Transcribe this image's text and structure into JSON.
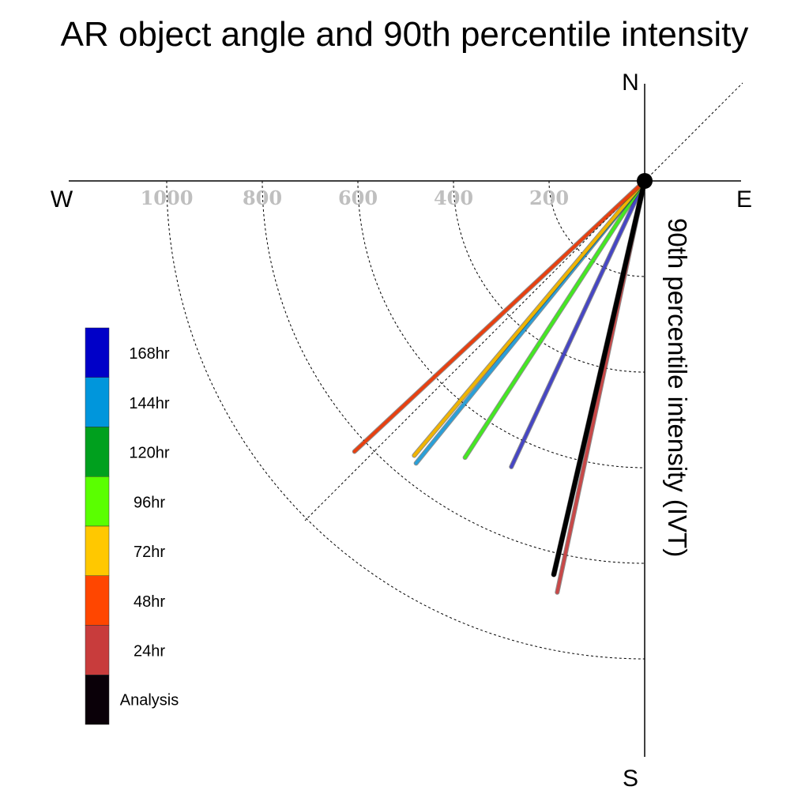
{
  "chart_data": {
    "type": "polar-vector",
    "title": "AR object angle and 90th percentile intensity",
    "ylabel": "90th percentile intensity (IVT)",
    "compass": {
      "north": "N",
      "south": "S",
      "east": "E",
      "west": "W"
    },
    "radial_ticks": [
      200,
      400,
      600,
      800,
      1000
    ],
    "radial_range": [
      0,
      1000
    ],
    "grid": true,
    "legend_position": "left",
    "series": [
      {
        "name": "168hr",
        "color": "#0000c8",
        "line_color": "#4646c4",
        "angle_deg": 205,
        "intensity": 660
      },
      {
        "name": "144hr",
        "color": "#0096dc",
        "line_color": "#2aa0d8",
        "angle_deg": 219,
        "intensity": 760
      },
      {
        "name": "120hr",
        "color": "#00a01e",
        "line_color": "#00a01e",
        "angle_deg": 0,
        "intensity": 0
      },
      {
        "name": "96hr",
        "color": "#5aff00",
        "line_color": "#44e822",
        "angle_deg": 213,
        "intensity": 690
      },
      {
        "name": "72hr",
        "color": "#ffc800",
        "line_color": "#f0b400",
        "angle_deg": 220,
        "intensity": 750
      },
      {
        "name": "48hr",
        "color": "#ff4600",
        "line_color": "#e84010",
        "angle_deg": 227,
        "intensity": 830
      },
      {
        "name": "24hr",
        "color": "#c83c3c",
        "line_color": "#c84848",
        "angle_deg": 192,
        "intensity": 880
      },
      {
        "name": "Analysis",
        "color": "#0a0008",
        "line_color": "#000000",
        "angle_deg": 193,
        "intensity": 845
      }
    ]
  }
}
